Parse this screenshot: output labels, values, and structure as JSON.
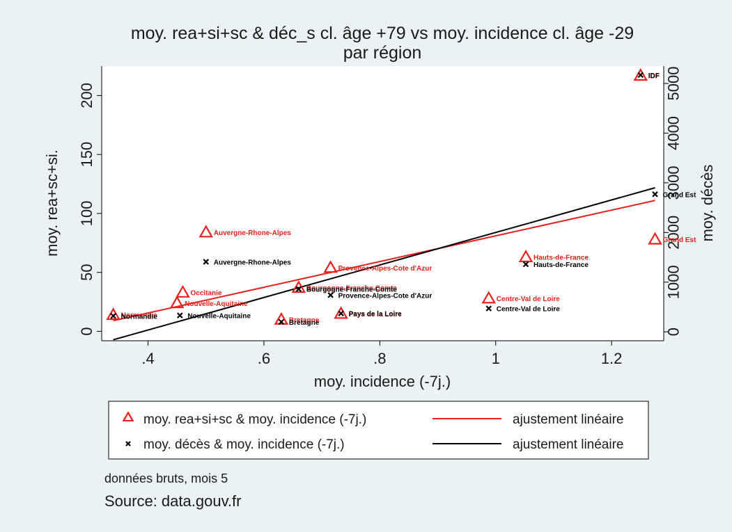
{
  "chart_data": {
    "type": "scatter",
    "title": "moy. rea+si+sc & déc_s cl. âge +79 vs moy. incidence cl. âge -29",
    "subtitle": "par région",
    "xlabel": "moy. incidence (-7j.)",
    "ylabel_left": "moy. rea+sc+si.",
    "ylabel_right": "moy. décès",
    "xlim": [
      0.32,
      1.29
    ],
    "ylim_left": [
      -8,
      225
    ],
    "ylim_right": [
      -180,
      5350
    ],
    "x_ticks": [
      0.4,
      0.6,
      0.8,
      1.0,
      1.2
    ],
    "x_tick_labels": [
      ".4",
      ".6",
      ".8",
      "1",
      "1.2"
    ],
    "y_left_ticks": [
      0,
      50,
      100,
      150,
      200
    ],
    "y_left_tick_labels": [
      "0",
      "50",
      "100",
      "150",
      "200"
    ],
    "y_right_ticks": [
      0,
      1000,
      2000,
      3000,
      4000,
      5000
    ],
    "y_right_tick_labels": [
      "0",
      "1000",
      "2000",
      "3000",
      "4000",
      "5000"
    ],
    "series": [
      {
        "name": "moy. rea+si+sc & moy. incidence (-7j.)",
        "axis": "left",
        "marker": "triangle",
        "color": "#e8201c",
        "points": [
          {
            "label": "Normandie",
            "x": 0.34,
            "y": 14
          },
          {
            "label": "Nouvelle-Aquitaine",
            "x": 0.45,
            "y": 24
          },
          {
            "label": "Occitanie",
            "x": 0.46,
            "y": 33
          },
          {
            "label": "Auvergne-Rhone-Alpes",
            "x": 0.5,
            "y": 84
          },
          {
            "label": "Bretagne",
            "x": 0.63,
            "y": 10
          },
          {
            "label": "Bourgogne-Franche-Comte",
            "x": 0.66,
            "y": 37
          },
          {
            "label": "Provence-Alpes-Cote d'Azur",
            "x": 0.715,
            "y": 54
          },
          {
            "label": "Pays de la Loire",
            "x": 0.733,
            "y": 15
          },
          {
            "label": "Centre-Val de Loire",
            "x": 0.988,
            "y": 28
          },
          {
            "label": "Hauts-de-France",
            "x": 1.052,
            "y": 63
          },
          {
            "label": "IDF",
            "x": 1.25,
            "y": 217
          },
          {
            "label": "Grand Est",
            "x": 1.275,
            "y": 78
          }
        ]
      },
      {
        "name": "moy. décès & moy. incidence (-7j.)",
        "axis": "right",
        "marker": "x",
        "color": "#000000",
        "points": [
          {
            "label": "Normandie",
            "x": 0.34,
            "y": 320
          },
          {
            "label": "Nouvelle-Aquitaine",
            "x": 0.455,
            "y": 330
          },
          {
            "label": "Auvergne-Rhone-Alpes",
            "x": 0.5,
            "y": 1410
          },
          {
            "label": "Bretagne",
            "x": 0.63,
            "y": 200
          },
          {
            "label": "Bourgogne-Franche-Comte",
            "x": 0.66,
            "y": 860
          },
          {
            "label": "Provence-Alpes-Cote d'Azur",
            "x": 0.715,
            "y": 740
          },
          {
            "label": "Pays de la Loire",
            "x": 0.733,
            "y": 370
          },
          {
            "label": "Centre-Val de Loire",
            "x": 0.988,
            "y": 470
          },
          {
            "label": "Hauts-de-France",
            "x": 1.052,
            "y": 1360
          },
          {
            "label": "IDF",
            "x": 1.25,
            "y": 5170
          },
          {
            "label": "Grand Est",
            "x": 1.275,
            "y": 2770
          }
        ]
      }
    ],
    "fit_lines": [
      {
        "name": "ajustement linéaire",
        "axis": "left",
        "color": "#e8201c",
        "x": [
          0.34,
          1.275
        ],
        "y": [
          9,
          111
        ]
      },
      {
        "name": "ajustement linéaire",
        "axis": "right",
        "color": "#000000",
        "x": [
          0.34,
          1.275
        ],
        "y": [
          -160,
          2900
        ]
      }
    ],
    "legend": {
      "position": "bottom",
      "entries": [
        {
          "label": "moy. rea+si+sc & moy. incidence (-7j.)",
          "kind": "triangle",
          "color": "#e8201c"
        },
        {
          "label": "ajustement linéaire",
          "kind": "line",
          "color": "#e8201c"
        },
        {
          "label": "moy. décès & moy. incidence (-7j.)",
          "kind": "x",
          "color": "#000000"
        },
        {
          "label": "ajustement linéaire",
          "kind": "line",
          "color": "#000000"
        }
      ]
    },
    "note": "données bruts, mois 5",
    "source": "Source: data.gouv.fr"
  }
}
